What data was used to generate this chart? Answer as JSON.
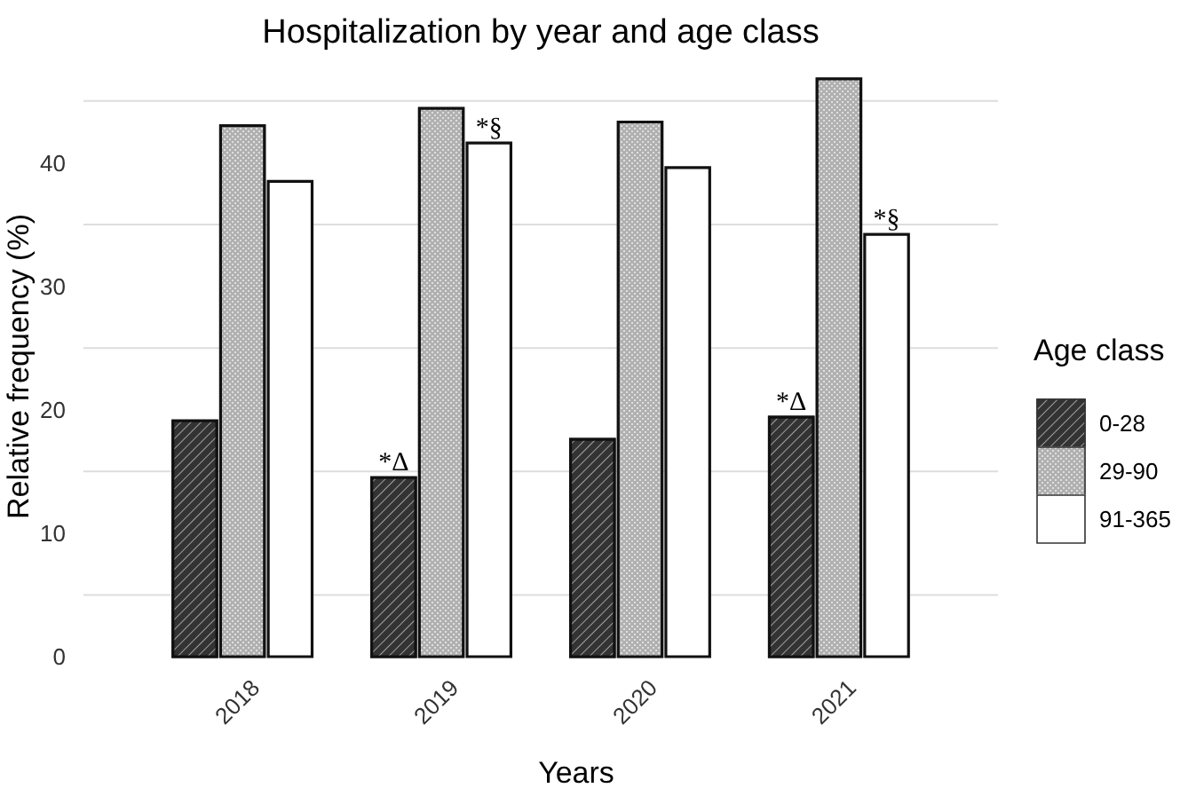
{
  "chart_data": {
    "type": "bar",
    "title": "Hospitalization by year and age class",
    "xlabel": "Years",
    "ylabel": "Relative frequency (%)",
    "legend_title": "Age class",
    "categories": [
      "2018",
      "2019",
      "2020",
      "2021"
    ],
    "series": [
      {
        "name": "0-28",
        "color": "#333333",
        "values": [
          19.1,
          14.5,
          17.6,
          19.4
        ]
      },
      {
        "name": "29-90",
        "color": "#b0b0b0",
        "values": [
          43.0,
          44.4,
          43.3,
          46.8
        ]
      },
      {
        "name": "91-365",
        "color": "#ffffff",
        "values": [
          38.5,
          41.6,
          39.6,
          34.2
        ]
      }
    ],
    "ylim": [
      0,
      47
    ],
    "yticks": [
      0,
      {
        "value": 5,
        "label": null
      },
      10,
      {
        "value": 15,
        "label": null
      },
      20,
      {
        "value": 25,
        "label": null
      },
      30,
      {
        "value": 35,
        "label": null
      },
      40,
      {
        "value": 45,
        "label": null
      }
    ],
    "grid": "y",
    "legend": "right",
    "annotations": [
      {
        "text": "*Δ",
        "x": "2019",
        "y": 14.5
      },
      {
        "text": "*§",
        "x": "2019",
        "y": 41.6
      },
      {
        "text": "*Δ",
        "x": "2021",
        "y": 19.4
      },
      {
        "text": "*§",
        "x": "2021",
        "y": 34.2
      }
    ]
  }
}
